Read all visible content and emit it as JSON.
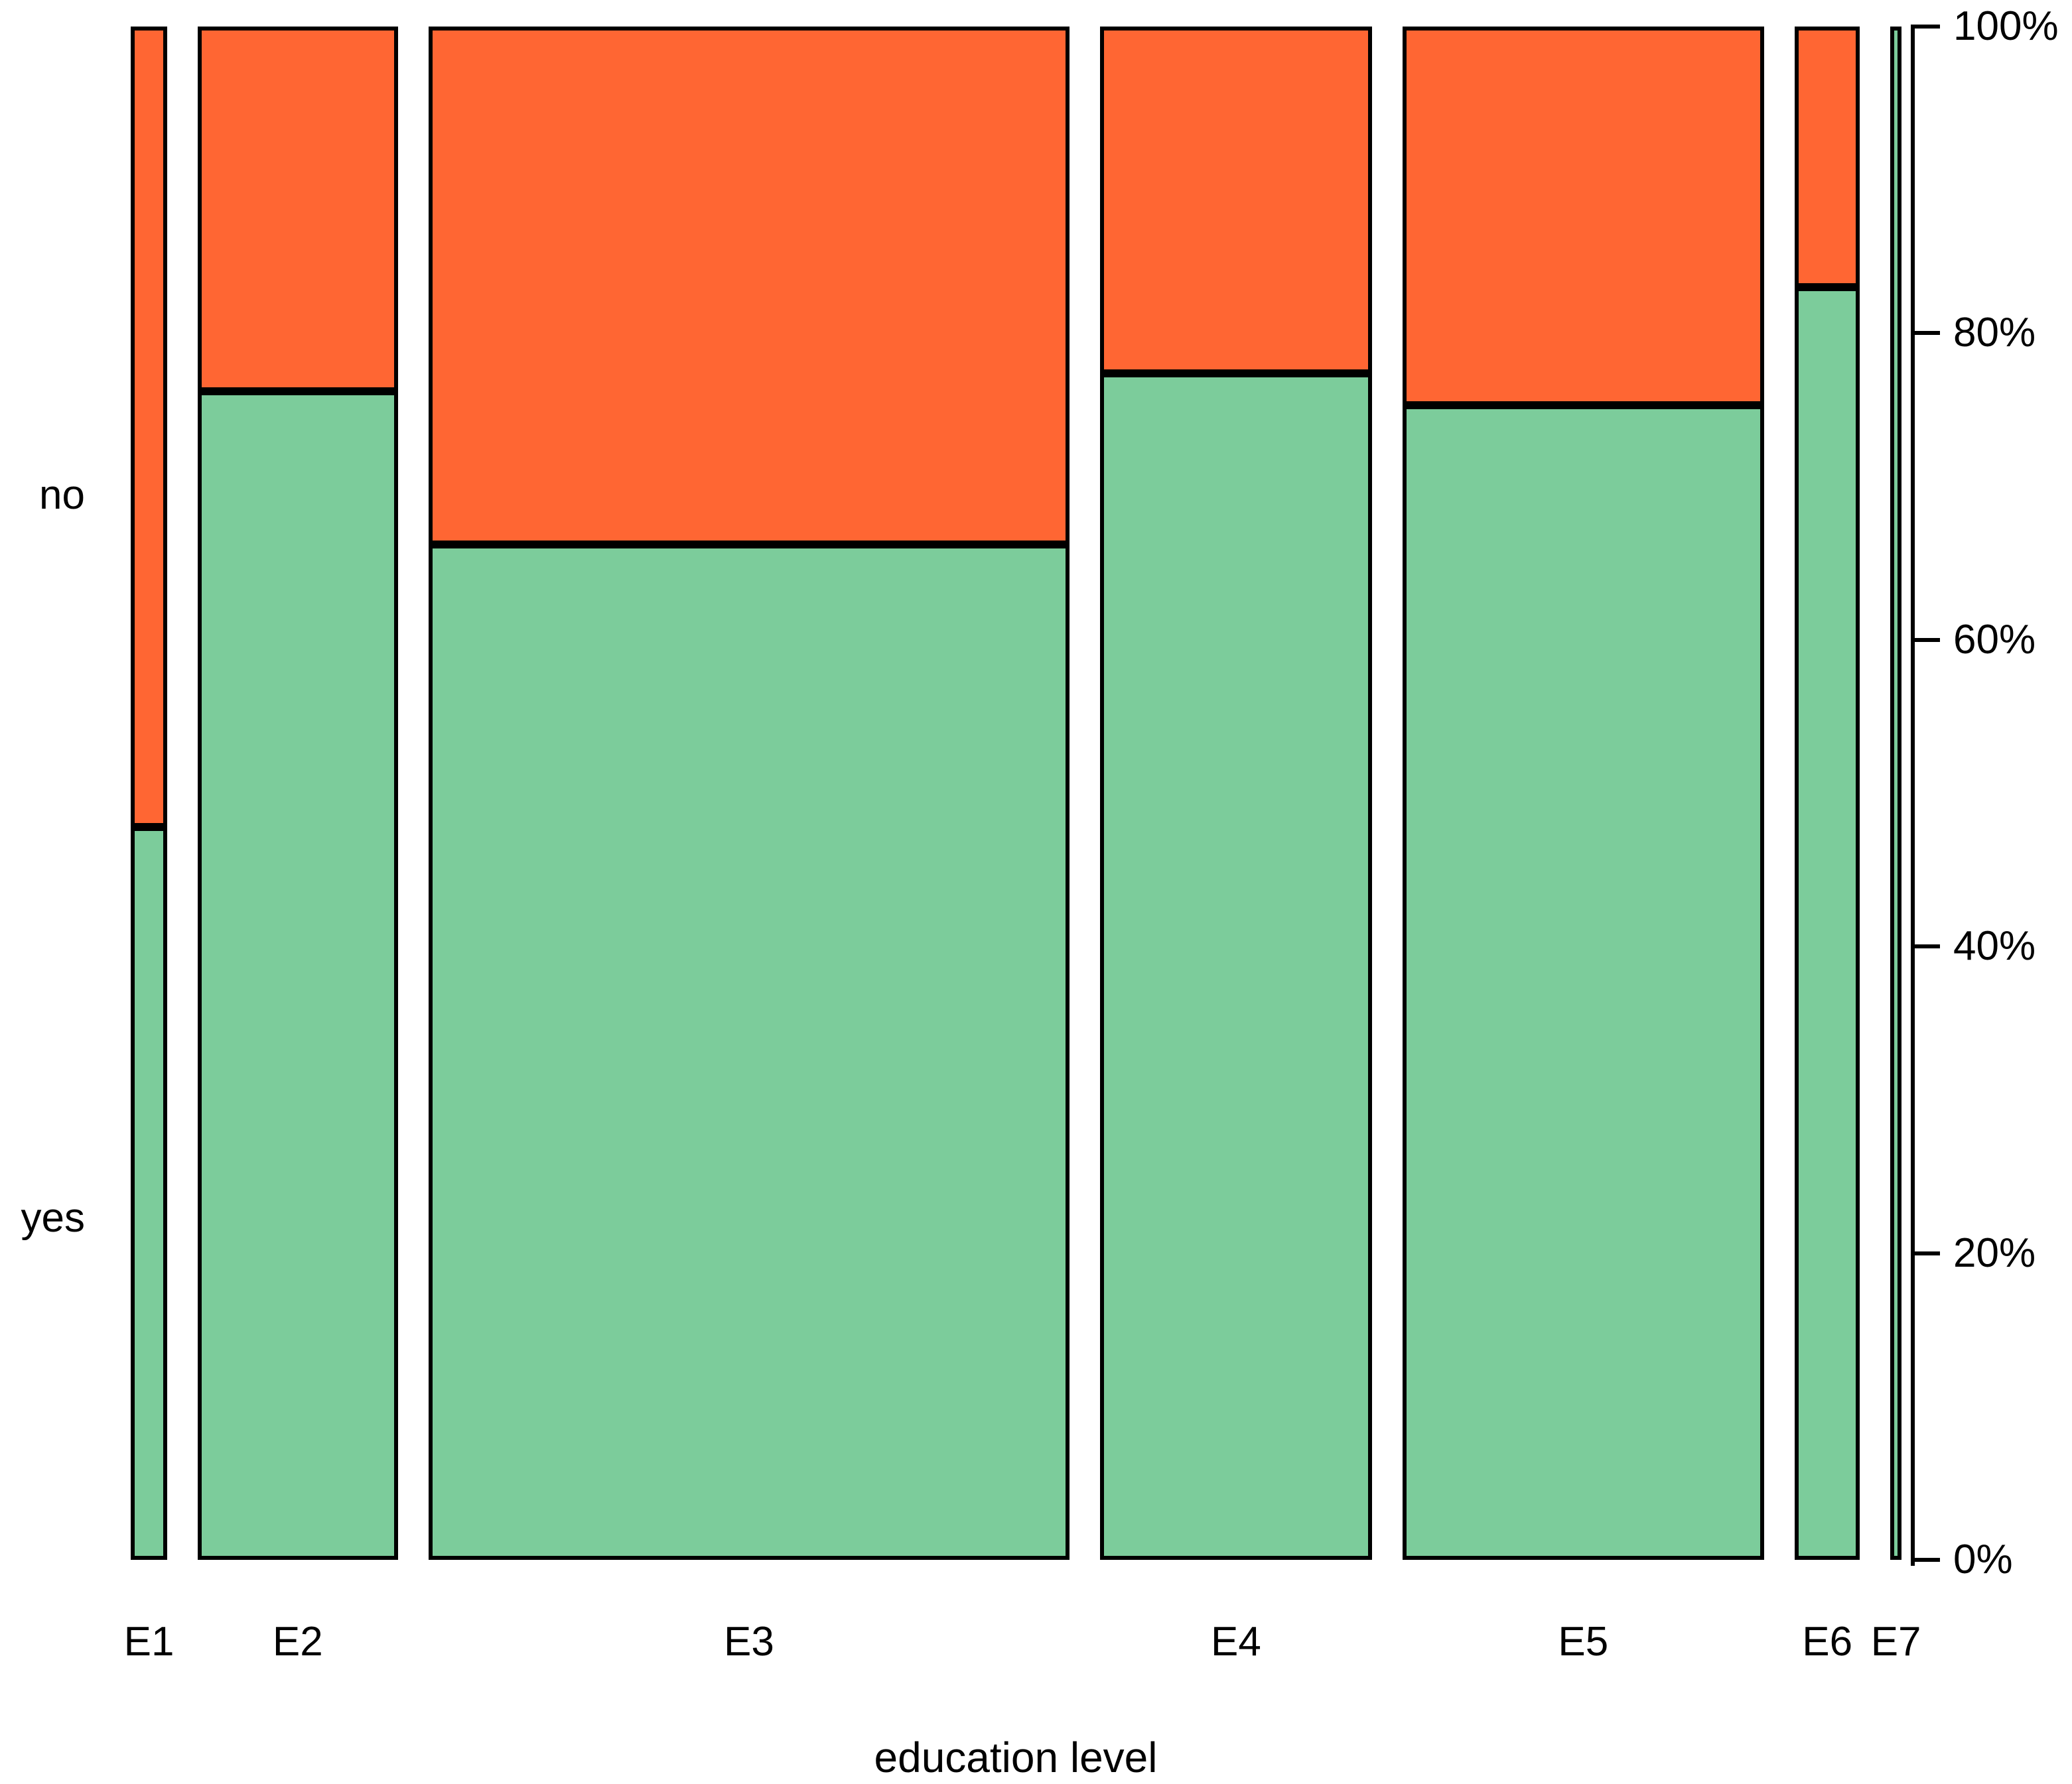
{
  "chart_data": {
    "type": "mosaic",
    "title": "",
    "xlabel": "education level",
    "ylabel_categories": [
      "no",
      "yes"
    ],
    "categories": [
      "E1",
      "E2",
      "E3",
      "E4",
      "E5",
      "E6",
      "E7"
    ],
    "category_width_fractions": [
      0.023,
      0.126,
      0.404,
      0.171,
      0.228,
      0.041,
      0.007
    ],
    "series": [
      {
        "name": "yes",
        "color": "#7CCC9B",
        "values_pct": [
          47.8,
          76.2,
          66.2,
          77.4,
          75.3,
          83.0,
          100.0
        ]
      },
      {
        "name": "no",
        "color": "#FF6633",
        "values_pct": [
          52.2,
          23.8,
          33.8,
          22.6,
          24.7,
          17.0,
          0.0
        ]
      }
    ],
    "axis_right": {
      "ticks": [
        "0%",
        "20%",
        "40%",
        "60%",
        "80%",
        "100%"
      ],
      "tick_values": [
        0,
        20,
        40,
        60,
        80,
        100
      ],
      "range": [
        0,
        100
      ]
    },
    "legend": "none",
    "grid": "off",
    "background_color": "#FFFFFF",
    "border_color": "#000000"
  }
}
